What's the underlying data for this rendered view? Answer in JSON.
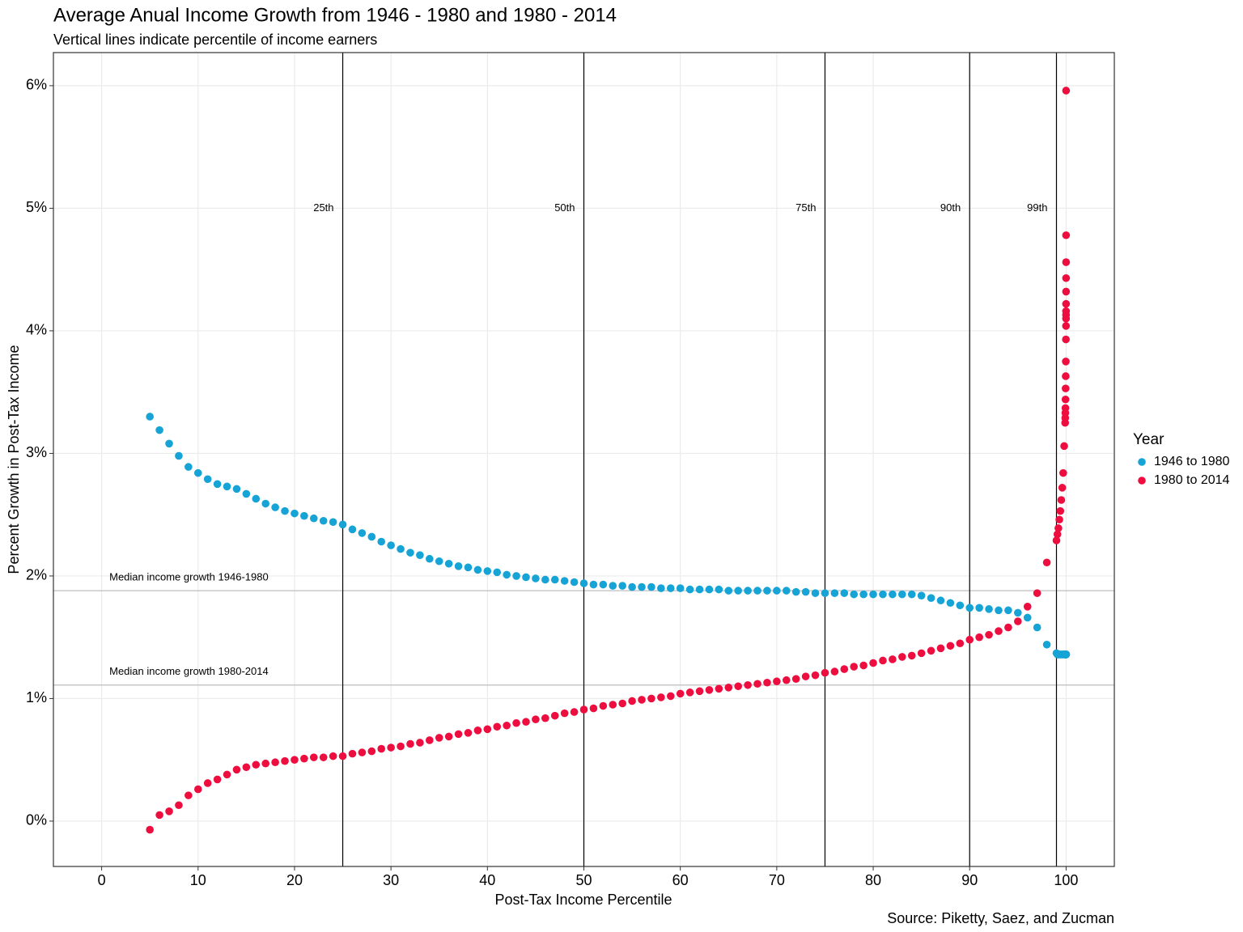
{
  "chart_data": {
    "type": "scatter",
    "title": "Average Anual Income Growth from 1946 - 1980 and 1980 - 2014",
    "subtitle": "Vertical lines indicate percentile of income earners",
    "x_label": "Post-Tax Income Percentile",
    "y_label": "Percent Growth in Post-Tax Income",
    "caption": "Source: Piketty, Saez, and Zucman",
    "legend_title": "Year",
    "legend_position": "right",
    "grid": true,
    "xlim": [
      -5,
      105
    ],
    "ylim": [
      -0.37,
      6.27
    ],
    "xticks": [
      0,
      10,
      20,
      30,
      40,
      50,
      60,
      70,
      80,
      90,
      100
    ],
    "yticks": [
      {
        "value": 0,
        "label": "0%"
      },
      {
        "value": 1,
        "label": "1%"
      },
      {
        "value": 2,
        "label": "2%"
      },
      {
        "value": 3,
        "label": "3%"
      },
      {
        "value": 4,
        "label": "4%"
      },
      {
        "value": 5,
        "label": "5%"
      },
      {
        "value": 6,
        "label": "6%"
      }
    ],
    "vlines": [
      {
        "value": 25,
        "label": "25th"
      },
      {
        "value": 50,
        "label": "50th"
      },
      {
        "value": 75,
        "label": "75th"
      },
      {
        "value": 90,
        "label": "90th"
      },
      {
        "value": 99,
        "label": "99th"
      }
    ],
    "vline_label_y": 5,
    "hlines": [
      {
        "value": 1.88,
        "label": "Median income growth 1946-1980"
      },
      {
        "value": 1.11,
        "label": "Median income growth 1980-2014"
      }
    ],
    "x": [
      5,
      6,
      7,
      8,
      9,
      10,
      11,
      12,
      13,
      14,
      15,
      16,
      17,
      18,
      19,
      20,
      21,
      22,
      23,
      24,
      25,
      26,
      27,
      28,
      29,
      30,
      31,
      32,
      33,
      34,
      35,
      36,
      37,
      38,
      39,
      40,
      41,
      42,
      43,
      44,
      45,
      46,
      47,
      48,
      49,
      50,
      51,
      52,
      53,
      54,
      55,
      56,
      57,
      58,
      59,
      60,
      61,
      62,
      63,
      64,
      65,
      66,
      67,
      68,
      69,
      70,
      71,
      72,
      73,
      74,
      75,
      76,
      77,
      78,
      79,
      80,
      81,
      82,
      83,
      84,
      85,
      86,
      87,
      88,
      89,
      90,
      91,
      92,
      93,
      94,
      95,
      96,
      97,
      98,
      99,
      99.1,
      99.2,
      99.3,
      99.4,
      99.5,
      99.6,
      99.7,
      99.8,
      99.9,
      99.91,
      99.92,
      99.93,
      99.94,
      99.95,
      99.96,
      99.97,
      99.98,
      99.99,
      99.991,
      99.992,
      99.993,
      99.994,
      99.995,
      99.996,
      99.997,
      99.998,
      99.999
    ],
    "series": [
      {
        "name": "1946 to 1980",
        "color": "#16a3d6",
        "values": [
          3.3,
          3.19,
          3.08,
          2.98,
          2.89,
          2.84,
          2.79,
          2.75,
          2.73,
          2.71,
          2.67,
          2.63,
          2.59,
          2.56,
          2.53,
          2.51,
          2.49,
          2.47,
          2.45,
          2.44,
          2.42,
          2.38,
          2.35,
          2.32,
          2.28,
          2.25,
          2.22,
          2.19,
          2.17,
          2.14,
          2.12,
          2.1,
          2.08,
          2.07,
          2.05,
          2.04,
          2.03,
          2.01,
          2.0,
          1.99,
          1.98,
          1.97,
          1.97,
          1.96,
          1.95,
          1.94,
          1.93,
          1.93,
          1.92,
          1.92,
          1.91,
          1.91,
          1.91,
          1.9,
          1.9,
          1.9,
          1.89,
          1.89,
          1.89,
          1.89,
          1.88,
          1.88,
          1.88,
          1.88,
          1.88,
          1.88,
          1.88,
          1.87,
          1.87,
          1.86,
          1.86,
          1.86,
          1.86,
          1.85,
          1.85,
          1.85,
          1.85,
          1.85,
          1.85,
          1.85,
          1.84,
          1.82,
          1.8,
          1.78,
          1.76,
          1.74,
          1.74,
          1.73,
          1.72,
          1.72,
          1.7,
          1.66,
          1.58,
          1.44,
          1.37,
          1.36,
          1.36,
          1.36,
          1.36,
          1.36,
          1.36,
          1.36,
          1.36,
          1.36,
          1.36,
          1.36,
          1.36,
          1.36,
          1.36,
          1.36,
          1.36,
          1.36,
          1.36,
          1.36,
          1.36,
          1.36,
          1.36,
          1.36,
          1.36,
          1.36,
          1.36,
          1.36
        ]
      },
      {
        "name": "1980 to 2014",
        "color": "#ee0d3f",
        "values": [
          -0.07,
          0.05,
          0.08,
          0.13,
          0.21,
          0.26,
          0.31,
          0.34,
          0.38,
          0.42,
          0.44,
          0.46,
          0.47,
          0.48,
          0.49,
          0.5,
          0.51,
          0.52,
          0.52,
          0.53,
          0.53,
          0.55,
          0.56,
          0.57,
          0.59,
          0.6,
          0.61,
          0.63,
          0.64,
          0.66,
          0.68,
          0.69,
          0.71,
          0.72,
          0.74,
          0.75,
          0.77,
          0.78,
          0.8,
          0.81,
          0.83,
          0.84,
          0.86,
          0.88,
          0.89,
          0.91,
          0.92,
          0.94,
          0.95,
          0.96,
          0.98,
          0.99,
          1.0,
          1.01,
          1.02,
          1.04,
          1.05,
          1.06,
          1.07,
          1.08,
          1.09,
          1.1,
          1.11,
          1.12,
          1.13,
          1.14,
          1.15,
          1.16,
          1.18,
          1.19,
          1.21,
          1.22,
          1.24,
          1.26,
          1.27,
          1.29,
          1.31,
          1.32,
          1.34,
          1.35,
          1.37,
          1.39,
          1.41,
          1.43,
          1.45,
          1.48,
          1.5,
          1.52,
          1.55,
          1.58,
          1.63,
          1.75,
          1.86,
          2.11,
          2.29,
          2.34,
          2.39,
          2.46,
          2.53,
          2.62,
          2.72,
          2.84,
          3.06,
          3.25,
          3.29,
          3.33,
          3.37,
          3.44,
          3.53,
          3.63,
          3.75,
          3.93,
          4.04,
          4.1,
          4.13,
          4.16,
          4.22,
          4.32,
          4.43,
          4.56,
          4.78,
          5.96
        ]
      }
    ]
  }
}
